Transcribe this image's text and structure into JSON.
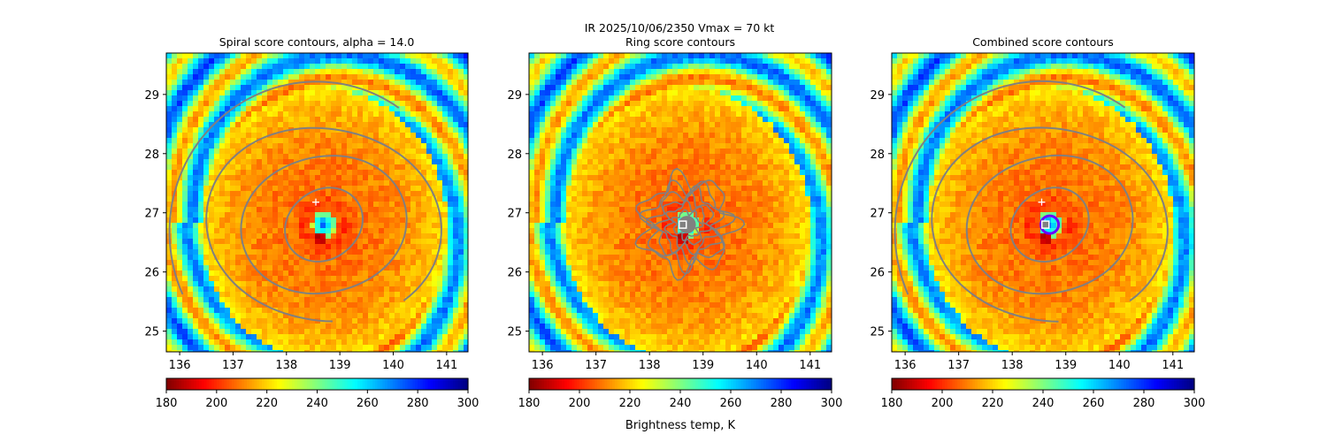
{
  "figure": {
    "suptitle": "IR  2025/10/06/2350    Vmax = 70 kt",
    "colorbar_label": "Brightness temp, K"
  },
  "chart_data": [
    {
      "type": "heatmap",
      "title": "Spiral score contours, alpha = 14.0",
      "xlim": [
        135.75,
        141.4
      ],
      "ylim": [
        24.65,
        29.7
      ],
      "xticks": [
        136,
        137,
        138,
        139,
        140,
        141
      ],
      "yticks": [
        25,
        26,
        27,
        28,
        29
      ],
      "colormap": "jet_r",
      "colorbar": {
        "range": [
          180,
          300
        ],
        "ticks": [
          180,
          200,
          220,
          240,
          260,
          280,
          300
        ]
      },
      "storm_center": {
        "lon": 138.7,
        "lat": 26.8
      },
      "cold_ring_radius_deg": 2.3,
      "markers": [
        {
          "type": "cross",
          "lon": 138.55,
          "lat": 27.18,
          "color": "#ffffff"
        }
      ],
      "contour_color": "#808080",
      "contour_pattern": "spiral"
    },
    {
      "type": "heatmap",
      "title": "Ring score contours",
      "xlim": [
        135.75,
        141.4
      ],
      "ylim": [
        24.65,
        29.7
      ],
      "xticks": [
        136,
        137,
        138,
        139,
        140,
        141
      ],
      "yticks": [
        25,
        26,
        27,
        28,
        29
      ],
      "colormap": "jet_r",
      "colorbar": {
        "range": [
          180,
          300
        ],
        "ticks": [
          180,
          200,
          220,
          240,
          260,
          280,
          300
        ]
      },
      "storm_center": {
        "lon": 138.7,
        "lat": 26.8
      },
      "cold_ring_radius_deg": 2.3,
      "markers": [
        {
          "type": "square",
          "lon": 138.62,
          "lat": 26.8,
          "color": "#ffffff"
        }
      ],
      "contour_color": "#808080",
      "contour_pattern": "ring"
    },
    {
      "type": "heatmap",
      "title": "Combined score contours",
      "xlim": [
        135.75,
        141.4
      ],
      "ylim": [
        24.65,
        29.7
      ],
      "xticks": [
        136,
        137,
        138,
        139,
        140,
        141
      ],
      "yticks": [
        25,
        26,
        27,
        28,
        29
      ],
      "colormap": "jet_r",
      "colorbar": {
        "range": [
          180,
          300
        ],
        "ticks": [
          180,
          200,
          220,
          240,
          260,
          280,
          300
        ]
      },
      "storm_center": {
        "lon": 138.7,
        "lat": 26.8
      },
      "cold_ring_radius_deg": 2.3,
      "markers": [
        {
          "type": "cross",
          "lon": 138.55,
          "lat": 27.18,
          "color": "#ffffff"
        },
        {
          "type": "square",
          "lon": 138.62,
          "lat": 26.8,
          "color": "#ffffff"
        }
      ],
      "contour_color": "#808080",
      "contour_pattern": "combined"
    }
  ]
}
